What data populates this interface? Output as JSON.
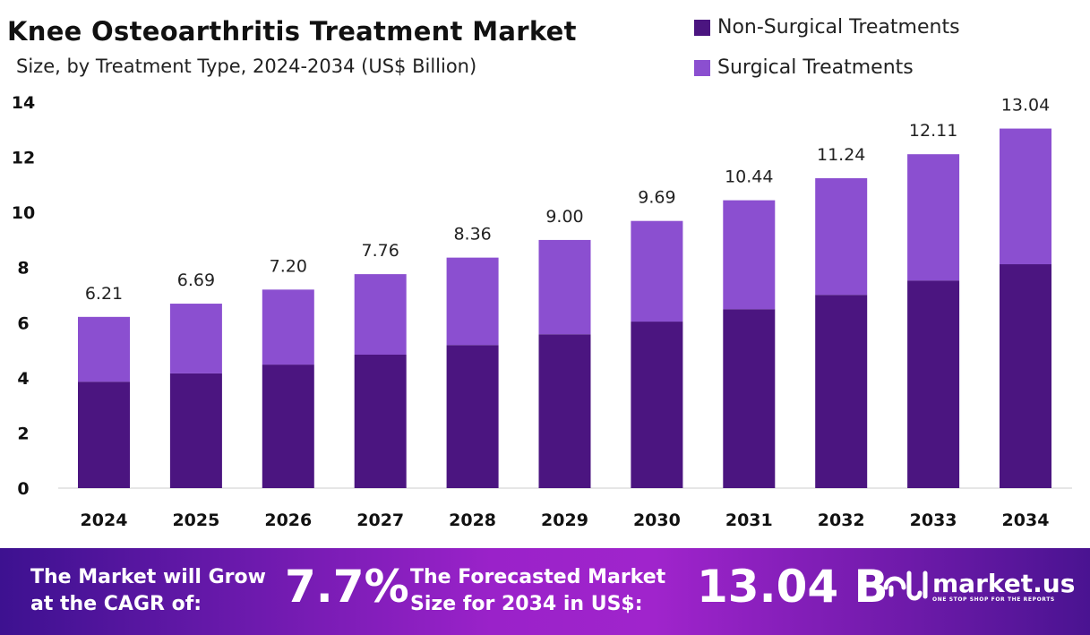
{
  "chart_data": {
    "type": "bar",
    "stacked": true,
    "title": "Knee Osteoarthritis Treatment Market",
    "subtitle": "Size, by Treatment Type, 2024-2034 (US$ Billion)",
    "categories": [
      "2024",
      "2025",
      "2026",
      "2027",
      "2028",
      "2029",
      "2030",
      "2031",
      "2032",
      "2033",
      "2034"
    ],
    "series": [
      {
        "name": "Non-Surgical Treatments",
        "color": "#4b1580",
        "values": [
          3.86,
          4.16,
          4.48,
          4.84,
          5.19,
          5.58,
          6.04,
          6.49,
          7.01,
          7.53,
          8.12
        ]
      },
      {
        "name": "Surgical Treatments",
        "color": "#8b4fd0",
        "values": [
          2.35,
          2.53,
          2.72,
          2.92,
          3.17,
          3.42,
          3.65,
          3.95,
          4.23,
          4.58,
          4.92
        ]
      }
    ],
    "totals": [
      "6.21",
      "6.69",
      "7.20",
      "7.76",
      "8.36",
      "9.00",
      "9.69",
      "10.44",
      "11.24",
      "12.11",
      "13.04"
    ],
    "ylim": [
      0,
      14
    ],
    "yticks": [
      "0",
      "2",
      "4",
      "6",
      "8",
      "10",
      "12",
      "14"
    ],
    "grid": false,
    "legend_position": "top-right"
  },
  "footer": {
    "cagr_text_1": "The Market will Grow",
    "cagr_text_2": "at the CAGR of:",
    "cagr_value": "7.7%",
    "forecast_text_1": "The Forecasted Market",
    "forecast_text_2": "Size for 2034 in US$:",
    "forecast_value": "13.04 B",
    "logo": "market.us",
    "logo_tagline": "ONE STOP SHOP FOR THE REPORTS"
  }
}
